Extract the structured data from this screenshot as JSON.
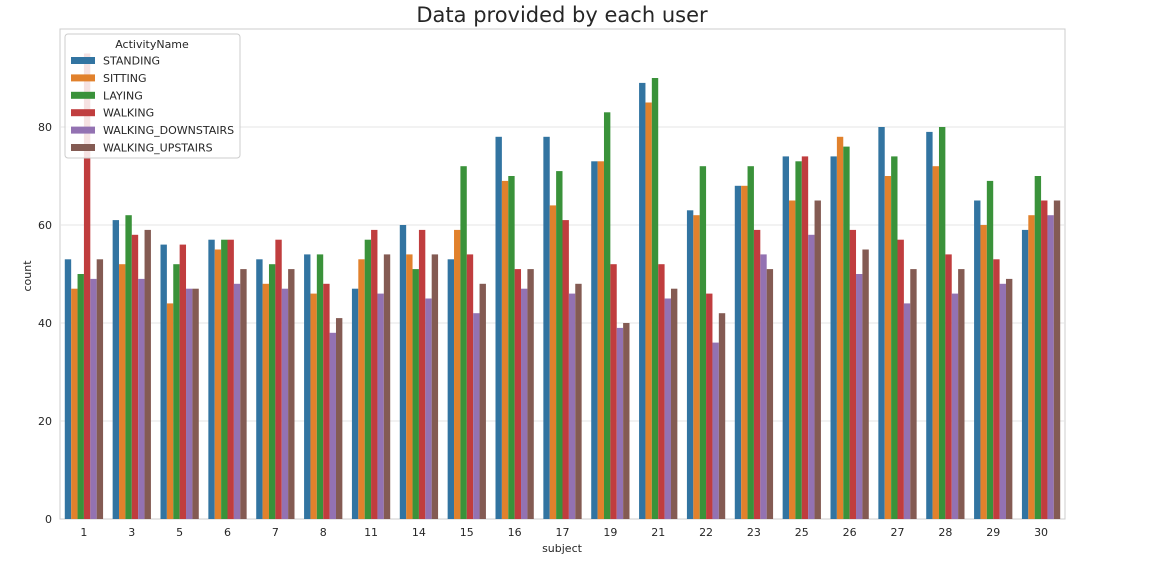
{
  "chart_data": {
    "type": "bar",
    "title": "Data provided by each user",
    "xlabel": "subject",
    "ylabel": "count",
    "ylim": [
      0,
      100
    ],
    "yticks": [
      0,
      20,
      40,
      60,
      80
    ],
    "grid": true,
    "legend": {
      "title": "ActivityName",
      "placement": "top-left"
    },
    "categories": [
      "1",
      "3",
      "5",
      "6",
      "7",
      "8",
      "11",
      "14",
      "15",
      "16",
      "17",
      "19",
      "21",
      "22",
      "23",
      "25",
      "26",
      "27",
      "28",
      "29",
      "30"
    ],
    "series": [
      {
        "name": "STANDING",
        "color": "#3274a1",
        "values": [
          53,
          61,
          56,
          57,
          53,
          54,
          47,
          60,
          53,
          78,
          78,
          73,
          89,
          63,
          68,
          74,
          74,
          80,
          79,
          65,
          59
        ]
      },
      {
        "name": "SITTING",
        "color": "#e1812c",
        "values": [
          47,
          52,
          44,
          55,
          48,
          46,
          53,
          54,
          59,
          69,
          64,
          73,
          85,
          62,
          68,
          65,
          78,
          70,
          72,
          60,
          62
        ]
      },
      {
        "name": "LAYING",
        "color": "#3a923a",
        "values": [
          50,
          62,
          52,
          57,
          52,
          54,
          57,
          51,
          72,
          70,
          71,
          83,
          90,
          72,
          72,
          73,
          76,
          74,
          80,
          69,
          70
        ]
      },
      {
        "name": "WALKING",
        "color": "#c03d3e",
        "values": [
          95,
          58,
          56,
          57,
          57,
          48,
          59,
          59,
          54,
          51,
          61,
          52,
          52,
          46,
          59,
          74,
          59,
          57,
          54,
          53,
          65
        ]
      },
      {
        "name": "WALKING_DOWNSTAIRS",
        "color": "#9372b2",
        "values": [
          49,
          49,
          47,
          48,
          47,
          38,
          46,
          45,
          42,
          47,
          46,
          39,
          45,
          36,
          54,
          58,
          50,
          44,
          46,
          48,
          62
        ]
      },
      {
        "name": "WALKING_UPSTAIRS",
        "color": "#845b53",
        "values": [
          53,
          59,
          47,
          51,
          51,
          41,
          54,
          54,
          48,
          51,
          48,
          40,
          47,
          42,
          51,
          65,
          55,
          51,
          51,
          49,
          65
        ]
      }
    ]
  }
}
